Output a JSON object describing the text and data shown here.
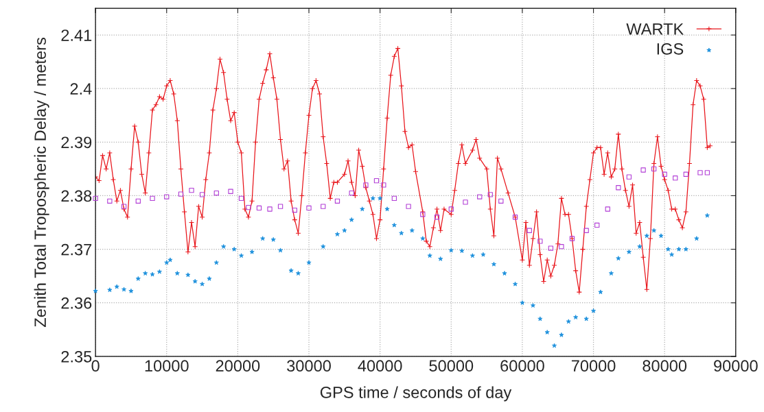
{
  "chart_data": {
    "type": "scatter",
    "xlabel": "GPS time / seconds of day",
    "ylabel": "Zenith Total Tropospheric Delay / meters",
    "xlim": [
      0,
      90000
    ],
    "ylim": [
      2.35,
      2.415
    ],
    "xticks": [
      0,
      10000,
      20000,
      30000,
      40000,
      50000,
      60000,
      70000,
      80000,
      90000
    ],
    "yticks": [
      2.35,
      2.36,
      2.37,
      2.38,
      2.39,
      2.4,
      2.41
    ],
    "grid": true,
    "legend": "top right",
    "series": [
      {
        "name": "WARTK",
        "type": "line",
        "marker": "cross",
        "color": "#e8141a",
        "x": [
          0,
          500,
          1000,
          1500,
          2000,
          2500,
          3000,
          3500,
          4000,
          4500,
          5000,
          5500,
          6000,
          6500,
          7000,
          7500,
          8000,
          8500,
          9000,
          9500,
          10000,
          10500,
          11000,
          11500,
          12000,
          12500,
          13000,
          13500,
          14000,
          14500,
          15000,
          15500,
          16000,
          16500,
          17000,
          17500,
          18000,
          18500,
          19000,
          19500,
          20000,
          20500,
          21000,
          21500,
          22000,
          22500,
          23000,
          23500,
          24000,
          24500,
          25000,
          25500,
          26000,
          26500,
          27000,
          27500,
          28000,
          28500,
          29000,
          29500,
          30000,
          30500,
          31000,
          31500,
          32000,
          32500,
          33000,
          33500,
          34000,
          35000,
          35500,
          36000,
          36500,
          37000,
          37500,
          38000,
          38500,
          39000,
          39500,
          40000,
          40500,
          41000,
          41500,
          42000,
          42500,
          43000,
          43500,
          44000,
          44500,
          45000,
          46000,
          46500,
          47000,
          47500,
          48000,
          48500,
          49000,
          50000,
          50500,
          51000,
          51500,
          52000,
          53000,
          53500,
          54000,
          55000,
          55500,
          56000,
          56500,
          57000,
          58000,
          59000,
          60000,
          60500,
          61000,
          61500,
          62000,
          62500,
          63000,
          63500,
          64000,
          64500,
          65000,
          65500,
          66000,
          66500,
          67000,
          67500,
          68000,
          68500,
          69000,
          69500,
          70000,
          70500,
          71000,
          71500,
          72000,
          72500,
          73000,
          73500,
          74000,
          74500,
          75000,
          75500,
          76000,
          76500,
          77000,
          77500,
          78000,
          78500,
          79000,
          79500,
          80000,
          80500,
          81000,
          81500,
          82000,
          82500,
          83000,
          83500,
          84000,
          84500,
          85000,
          85500,
          86000,
          86400
        ],
        "values": [
          2.3835,
          2.3828,
          2.3875,
          2.385,
          2.388,
          2.383,
          2.379,
          2.381,
          2.3775,
          2.376,
          2.385,
          2.393,
          2.39,
          2.384,
          2.3805,
          2.388,
          2.396,
          2.397,
          2.3985,
          2.398,
          2.4005,
          2.4015,
          2.399,
          2.394,
          2.385,
          2.377,
          2.3695,
          2.375,
          2.3705,
          2.378,
          2.376,
          2.383,
          2.388,
          2.396,
          2.4,
          2.4055,
          2.403,
          2.398,
          2.394,
          2.3955,
          2.39,
          2.388,
          2.3775,
          2.376,
          2.379,
          2.39,
          2.398,
          2.401,
          2.4035,
          2.4065,
          2.402,
          2.398,
          2.3905,
          2.385,
          2.3865,
          2.379,
          2.3755,
          2.373,
          2.38,
          2.388,
          2.395,
          2.4,
          2.4015,
          2.399,
          2.391,
          2.386,
          2.3795,
          2.3825,
          2.3825,
          2.384,
          2.3865,
          2.3825,
          2.38,
          2.3885,
          2.3855,
          2.3815,
          2.379,
          2.3765,
          2.372,
          2.3755,
          2.385,
          2.3945,
          2.4025,
          2.406,
          2.4075,
          2.4005,
          2.392,
          2.389,
          2.3895,
          2.3845,
          2.377,
          2.3715,
          2.3705,
          2.374,
          2.3775,
          2.3735,
          2.3775,
          2.3765,
          2.381,
          2.386,
          2.3895,
          2.386,
          2.3885,
          2.3905,
          2.387,
          2.385,
          2.3775,
          2.3725,
          2.387,
          2.385,
          2.3805,
          2.376,
          2.368,
          2.375,
          2.367,
          2.372,
          2.377,
          2.369,
          2.364,
          2.368,
          2.365,
          2.367,
          2.371,
          2.3795,
          2.3765,
          2.3765,
          2.372,
          2.366,
          2.362,
          2.37,
          2.378,
          2.383,
          2.388,
          2.389,
          2.389,
          2.384,
          2.388,
          2.3835,
          2.385,
          2.3915,
          2.385,
          2.381,
          2.378,
          2.382,
          2.373,
          2.375,
          2.3685,
          2.3625,
          2.372,
          2.386,
          2.391,
          2.3855,
          2.383,
          2.381,
          2.3775,
          2.3775,
          2.3755,
          2.374,
          2.377,
          2.386,
          2.397,
          2.4015,
          2.4005,
          2.398,
          2.389,
          2.3893
        ]
      },
      {
        "name": "IGS",
        "marker": "star",
        "color": "#1a8fdc",
        "x": [
          0,
          2000,
          3000,
          4000,
          5000,
          6000,
          7000,
          8000,
          9000,
          10000,
          10500,
          11500,
          13000,
          14000,
          15000,
          16000,
          17000,
          18000,
          19500,
          20500,
          22000,
          23500,
          25000,
          26000,
          27500,
          28500,
          30000,
          32000,
          34000,
          35000,
          36000,
          37500,
          39000,
          40000,
          41000,
          42000,
          43000,
          44500,
          46000,
          47000,
          48500,
          50000,
          51500,
          53000,
          54500,
          56000,
          57500,
          59000,
          60000,
          61500,
          62500,
          63500,
          64500,
          65500,
          66500,
          67500,
          69000,
          70000,
          71000,
          72500,
          73500,
          75000,
          76500,
          77500,
          78500,
          79500,
          80500,
          81000,
          82000,
          83000,
          84500,
          86000
        ],
        "values": [
          2.3622,
          2.3624,
          2.363,
          2.3625,
          2.3622,
          2.3645,
          2.3655,
          2.3653,
          2.3658,
          2.3675,
          2.368,
          2.3655,
          2.3652,
          2.364,
          2.3635,
          2.3645,
          2.3675,
          2.3705,
          2.37,
          2.3688,
          2.3695,
          2.372,
          2.3718,
          2.3698,
          2.366,
          2.3655,
          2.3675,
          2.3705,
          2.3728,
          2.3735,
          2.3755,
          2.3775,
          2.3795,
          2.3795,
          2.3775,
          2.3745,
          2.373,
          2.3735,
          2.372,
          2.3688,
          2.3682,
          2.3698,
          2.3697,
          2.3688,
          2.369,
          2.3672,
          2.3655,
          2.3635,
          2.36,
          2.3595,
          2.357,
          2.3545,
          2.352,
          2.354,
          2.3565,
          2.3573,
          2.357,
          2.3585,
          2.362,
          2.3655,
          2.3683,
          2.3695,
          2.3705,
          2.3725,
          2.3735,
          2.3725,
          2.37,
          2.369,
          2.37,
          2.37,
          2.372,
          2.3763
        ]
      },
      {
        "marker": "square",
        "color": "#b23fd6",
        "x": [
          0,
          2000,
          4000,
          6000,
          8000,
          10000,
          12000,
          13500,
          15000,
          17000,
          19000,
          20500,
          21500,
          23000,
          24500,
          26000,
          28000,
          30000,
          32000,
          34000,
          36000,
          38000,
          39500,
          40500,
          42000,
          44000,
          46000,
          48000,
          50000,
          52000,
          54000,
          55500,
          57000,
          59000,
          61000,
          62500,
          64000,
          65500,
          67000,
          69000,
          70500,
          72000,
          73500,
          75000,
          77000,
          78500,
          80000,
          81500,
          83000,
          85000,
          86000
        ],
        "values": [
          2.3795,
          2.379,
          2.378,
          2.379,
          2.3795,
          2.3798,
          2.3803,
          2.381,
          2.3802,
          2.3805,
          2.3808,
          2.3795,
          2.3778,
          2.3777,
          2.3775,
          2.378,
          2.3773,
          2.3777,
          2.378,
          2.379,
          2.3805,
          2.382,
          2.3828,
          2.382,
          2.3795,
          2.378,
          2.3765,
          2.376,
          2.3775,
          2.3788,
          2.3798,
          2.3802,
          2.379,
          2.376,
          2.3735,
          2.3715,
          2.3702,
          2.3705,
          2.372,
          2.3735,
          2.3745,
          2.3775,
          2.3815,
          2.3835,
          2.3848,
          2.385,
          2.384,
          2.3833,
          2.384,
          2.3843,
          2.3843
        ]
      }
    ]
  }
}
